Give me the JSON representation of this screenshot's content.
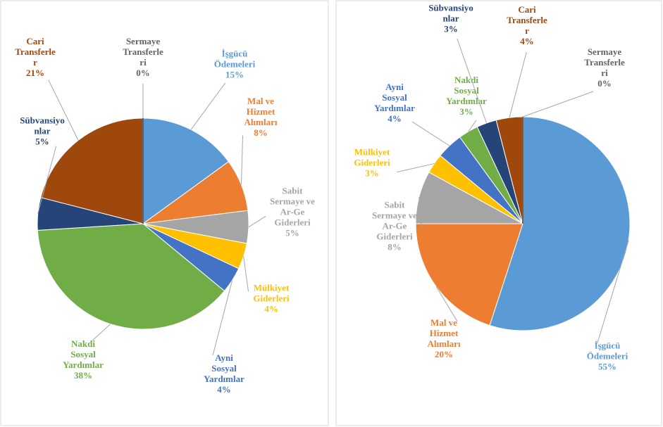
{
  "chart_data": [
    {
      "type": "pie",
      "categories": [
        "İşgücü Ödemeleri",
        "Mal ve Hizmet Alımları",
        "Sabit Sermaye ve Ar-Ge Giderleri",
        "Mülkiyet Giderleri",
        "Ayni Sosyal Yardımlar",
        "Nakdi Sosyal Yardımlar",
        "Sübvansiyonlar",
        "Cari Transferler",
        "Sermaye Transferleri"
      ],
      "values": [
        15,
        8,
        5,
        4,
        4,
        38,
        5,
        21,
        0
      ],
      "value_labels": [
        "15%",
        "8%",
        "5%",
        "4%",
        "4%",
        "38%",
        "5%",
        "21%",
        "0%"
      ],
      "colors": [
        "#5b9bd5",
        "#ed7d31",
        "#a5a5a5",
        "#ffc000",
        "#4472c4",
        "#70ad47",
        "#264478",
        "#9e480e",
        "#636363"
      ]
    },
    {
      "type": "pie",
      "categories": [
        "İşgücü Ödemeleri",
        "Mal ve Hizmet Alımları",
        "Sabit Sermaye ve Ar-Ge Giderleri",
        "Mülkiyet Giderleri",
        "Ayni Sosyal Yardımlar",
        "Nakdi Sosyal Yardımlar",
        "Sübvansiyonlar",
        "Cari Transferler",
        "Sermaye Transferleri"
      ],
      "values": [
        55,
        20,
        8,
        3,
        4,
        3,
        3,
        4,
        0
      ],
      "value_labels": [
        "55%",
        "20%",
        "8%",
        "3%",
        "4%",
        "3%",
        "3%",
        "4%",
        "0%"
      ],
      "colors": [
        "#5b9bd5",
        "#ed7d31",
        "#a5a5a5",
        "#ffc000",
        "#4472c4",
        "#70ad47",
        "#264478",
        "#9e480e",
        "#636363"
      ]
    }
  ]
}
